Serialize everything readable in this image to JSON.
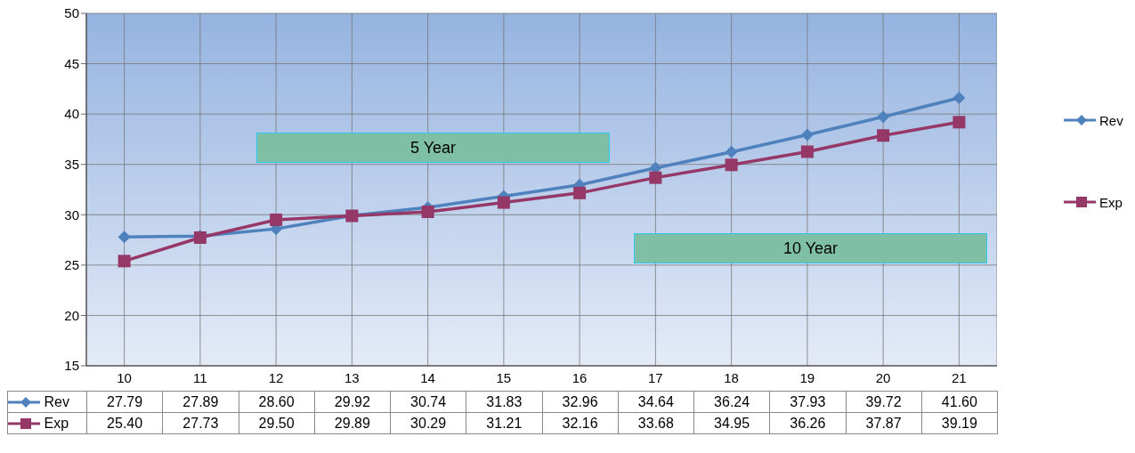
{
  "chart_data": {
    "type": "line",
    "categories": [
      "10",
      "11",
      "12",
      "13",
      "14",
      "15",
      "16",
      "17",
      "18",
      "19",
      "20",
      "21"
    ],
    "series": [
      {
        "name": "Rev",
        "color": "#4f81bd",
        "marker": "diamond",
        "values": [
          27.79,
          27.89,
          28.6,
          29.92,
          30.74,
          31.83,
          32.96,
          34.64,
          36.24,
          37.93,
          39.72,
          41.6
        ],
        "value_labels": [
          "27.79",
          "27.89",
          "28.60",
          "29.92",
          "30.74",
          "31.83",
          "32.96",
          "34.64",
          "36.24",
          "37.93",
          "39.72",
          "41.60"
        ]
      },
      {
        "name": "Exp",
        "color": "#953868",
        "marker": "square",
        "values": [
          25.4,
          27.73,
          29.5,
          29.89,
          30.29,
          31.21,
          32.16,
          33.68,
          34.95,
          36.26,
          37.87,
          39.19
        ],
        "value_labels": [
          "25.40",
          "27.73",
          "29.50",
          "29.89",
          "30.29",
          "31.21",
          "32.16",
          "33.68",
          "34.95",
          "36.26",
          "37.87",
          "39.19"
        ]
      }
    ],
    "ylim": [
      15,
      50
    ],
    "yticks": [
      15,
      20,
      25,
      30,
      35,
      40,
      45,
      50
    ],
    "grid": true,
    "legend": "right",
    "annotations": [
      "5 Year",
      "10 Year"
    ]
  }
}
